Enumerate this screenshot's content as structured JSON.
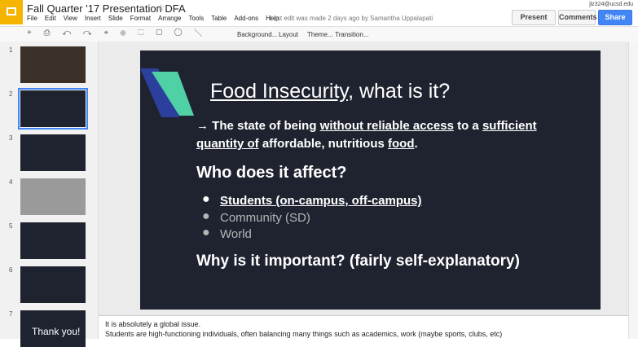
{
  "header": {
    "doc_title": "Fall Quarter '17 Presentation DFA",
    "menu": [
      "File",
      "Edit",
      "View",
      "Insert",
      "Slide",
      "Format",
      "Arrange",
      "Tools",
      "Table",
      "Add-ons",
      "Help"
    ],
    "last_edit": "Last edit was made 2 days ago by Samantha Uppalapati",
    "account": "jlz324@ucsd.edu",
    "buttons": [
      "Present",
      "Comments",
      "Share"
    ]
  },
  "toolbar": {
    "labels": [
      "Background...",
      "Layout",
      "Theme...",
      "Transition..."
    ]
  },
  "filmstrip": {
    "slide_numbers": [
      "1",
      "2",
      "3",
      "4",
      "5",
      "6",
      "7"
    ],
    "last_thumb_text": "Thank you!"
  },
  "slide": {
    "title": [
      {
        "text": "Food Insecurity",
        "underline": true
      },
      {
        "text": ", what is it?"
      }
    ],
    "definition": [
      {
        "text": "→ The state of being "
      },
      {
        "text": "without reliable access",
        "underline": true
      },
      {
        "text": " to a "
      },
      {
        "text": "sufficient quantity of",
        "underline": true
      },
      {
        "text": " affordable, nutritious "
      },
      {
        "text": "food",
        "underline": true
      },
      {
        "text": "."
      }
    ],
    "heading": "Who does it affect?",
    "bullets": [
      "Students (on-campus, off-campus)",
      "Community (SD)",
      "World"
    ],
    "closing": "Why is it important?  (fairly self-explanatory)"
  },
  "notes": [
    "It is absolutely a global issue.",
    "Students are high-functioning individuals, often balancing many things such as academics, work (maybe sports, clubs, etc)"
  ]
}
